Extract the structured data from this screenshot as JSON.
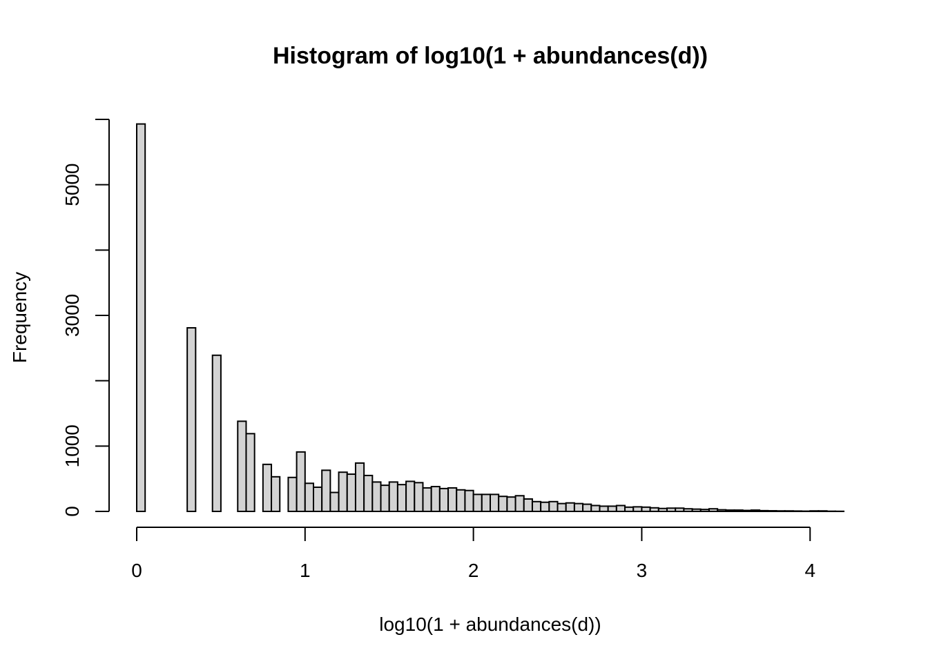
{
  "chart_data": {
    "type": "histogram",
    "title": "Histogram of log10(1 + abundances(d))",
    "x_label": "log10(1 + abundances(d))",
    "y_label": "Frequency",
    "bins": [
      0,
      0.05,
      0.1,
      0.15,
      0.2,
      0.25,
      0.3,
      0.35,
      0.4,
      0.45,
      0.5,
      0.55,
      0.6,
      0.65,
      0.7,
      0.75,
      0.8,
      0.85,
      0.9,
      0.95,
      1,
      1.05,
      1.1,
      1.15,
      1.2,
      1.25,
      1.3,
      1.35,
      1.4,
      1.45,
      1.5,
      1.55,
      1.6,
      1.65,
      1.7,
      1.75,
      1.8,
      1.85,
      1.9,
      1.95,
      2,
      2.05,
      2.1,
      2.15,
      2.2,
      2.25,
      2.3,
      2.35,
      2.4,
      2.45,
      2.5,
      2.55,
      2.6,
      2.65,
      2.7,
      2.75,
      2.8,
      2.85,
      2.9,
      2.95,
      3,
      3.05,
      3.1,
      3.15,
      3.2,
      3.25,
      3.3,
      3.35,
      3.4,
      3.45,
      3.5,
      3.55,
      3.6,
      3.65,
      3.7,
      3.75,
      3.8,
      3.85,
      3.9,
      3.95,
      4,
      4.05,
      4.1,
      4.15,
      4.2
    ],
    "values": [
      5930,
      0,
      0,
      0,
      0,
      0,
      2810,
      0,
      0,
      2390,
      0,
      0,
      1380,
      1190,
      0,
      720,
      530,
      0,
      520,
      910,
      430,
      370,
      630,
      290,
      600,
      570,
      740,
      550,
      450,
      400,
      450,
      410,
      460,
      440,
      360,
      380,
      350,
      360,
      330,
      320,
      260,
      260,
      260,
      230,
      220,
      240,
      190,
      150,
      140,
      150,
      120,
      130,
      120,
      110,
      90,
      80,
      80,
      90,
      65,
      70,
      65,
      55,
      45,
      50,
      50,
      40,
      35,
      30,
      40,
      25,
      20,
      20,
      15,
      20,
      12,
      10,
      8,
      8,
      6,
      4,
      8,
      8,
      3,
      2
    ],
    "color": "#d3d3d3",
    "xlim": [
      0,
      4.2
    ],
    "xticks": [
      0,
      1,
      2,
      3,
      4
    ],
    "ylim": [
      0,
      6000
    ],
    "yticks": [
      0,
      1000,
      3000,
      5000
    ],
    "yticks_unlabeled": [
      2000,
      4000,
      6000
    ]
  }
}
